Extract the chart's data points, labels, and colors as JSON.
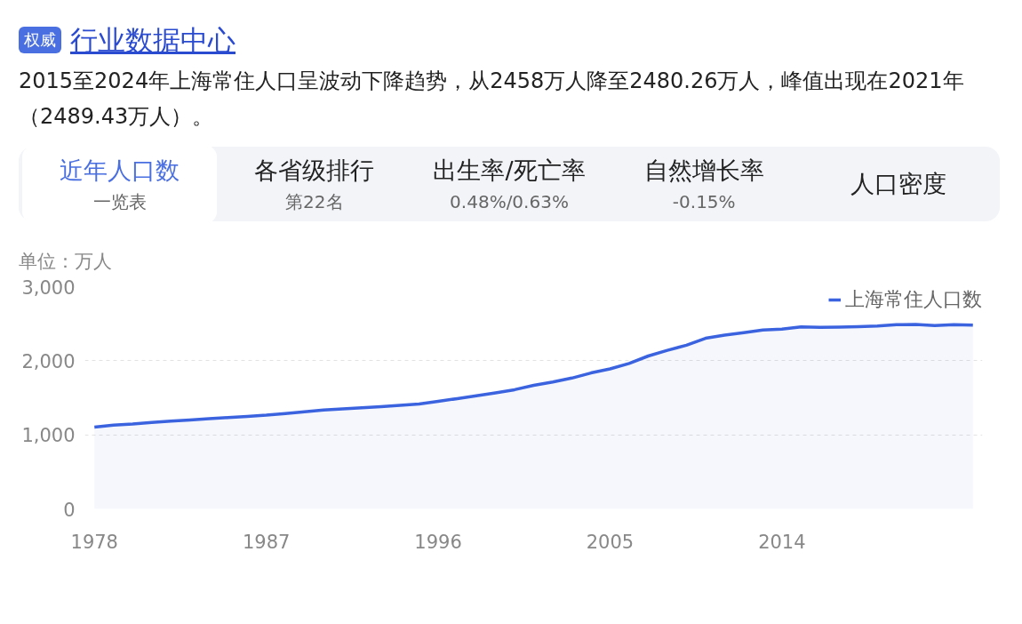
{
  "chart_data": {
    "type": "area",
    "title": "行业数据中心",
    "subtitle": "2015至2024年上海常住人口呈波动下降趋势，从2458万人降至2480.26万人，峰值出现在2021年（2489.43万人）。",
    "annotations": [
      "权威",
      "近年人口数",
      "一览表",
      "各省级排行",
      "第22名",
      "出生率/死亡率",
      "0.48%/0.63%",
      "自然增长率",
      "-0.15%",
      "人口密度"
    ],
    "ylabel": "单位：万人",
    "x": [
      1978,
      1979,
      1980,
      1981,
      1982,
      1983,
      1984,
      1985,
      1986,
      1987,
      1988,
      1989,
      1990,
      1991,
      1992,
      1993,
      1994,
      1995,
      1996,
      1997,
      1998,
      1999,
      2000,
      2001,
      2002,
      2003,
      2004,
      2005,
      2006,
      2007,
      2008,
      2009,
      2010,
      2011,
      2012,
      2013,
      2014,
      2015,
      2016,
      2017,
      2018,
      2019,
      2020,
      2021,
      2022,
      2023,
      2024
    ],
    "series": [
      {
        "name": "上海常住人口数",
        "color": "#3b63e0",
        "values": [
          1105,
          1132,
          1147,
          1168,
          1186,
          1201,
          1217,
          1233,
          1249,
          1265,
          1288,
          1311,
          1334,
          1350,
          1365,
          1381,
          1398,
          1415,
          1451,
          1489,
          1527,
          1567,
          1609,
          1668,
          1713,
          1766,
          1835,
          1890,
          1964,
          2064,
          2141,
          2210,
          2303,
          2347,
          2380,
          2415,
          2426,
          2458,
          2450,
          2455,
          2460,
          2468,
          2488,
          2489,
          2476,
          2487,
          2480
        ]
      }
    ],
    "xlim": [
      1977.5,
      2024.5
    ],
    "xticks": [
      1978,
      1987,
      1996,
      2005,
      2014
    ],
    "ylim": [
      0,
      3000
    ],
    "yticks": [
      {
        "value": 0,
        "label": "0"
      },
      {
        "value": 1000,
        "label": "1,000"
      },
      {
        "value": 2000,
        "label": "2,000"
      },
      {
        "value": 3000,
        "label": "3,000"
      }
    ],
    "grid": "y",
    "legend": "top right"
  }
}
